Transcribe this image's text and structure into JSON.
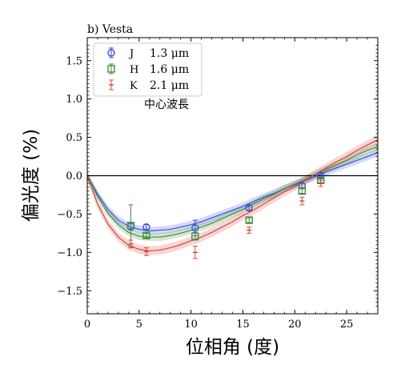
{
  "chart_data": {
    "type": "scatter",
    "panel_title": "b) Vesta",
    "xlabel": "位相角 (度)",
    "ylabel": "偏光度 (%)",
    "xlim": [
      0,
      28
    ],
    "ylim": [
      -1.8,
      1.8
    ],
    "xticks": [
      0,
      5,
      10,
      15,
      20,
      25
    ],
    "yticks": [
      -1.5,
      -1.0,
      -0.5,
      0.0,
      0.5,
      1.0,
      1.5
    ],
    "xtick_labels": [
      "0",
      "5",
      "10",
      "15",
      "20",
      "25"
    ],
    "ytick_labels": [
      "−1.5",
      "−1.0",
      "−0.5",
      "0.0",
      "0.5",
      "1.0",
      "1.5"
    ],
    "zero_line": true,
    "grid": false,
    "legend_position": "upper-left",
    "legend_note": "中心波長",
    "series": [
      {
        "key": "J",
        "name": "1.3 μm",
        "color": "#3a4fd6",
        "marker": "circle",
        "x": [
          4.2,
          5.7,
          10.4,
          15.6,
          20.7,
          22.5
        ],
        "y": [
          -0.66,
          -0.67,
          -0.68,
          -0.42,
          -0.13,
          0.0
        ],
        "yerr": [
          0.05,
          0.03,
          0.1,
          0.03,
          0.03,
          0.04
        ],
        "fit_x": [
          0,
          1,
          2,
          3,
          4,
          5,
          6,
          7,
          8,
          9,
          10,
          11,
          12,
          13,
          14,
          15,
          16,
          17,
          18,
          19,
          20,
          21,
          22,
          23,
          24,
          25,
          26,
          27,
          28
        ],
        "fit_y": [
          0.0,
          -0.24,
          -0.44,
          -0.58,
          -0.66,
          -0.7,
          -0.72,
          -0.71,
          -0.7,
          -0.67,
          -0.64,
          -0.6,
          -0.55,
          -0.5,
          -0.45,
          -0.4,
          -0.34,
          -0.28,
          -0.23,
          -0.17,
          -0.12,
          -0.06,
          -0.01,
          0.05,
          0.1,
          0.15,
          0.2,
          0.25,
          0.3
        ],
        "band": 0.05
      },
      {
        "key": "H",
        "name": "1.6 μm",
        "color": "#3f8f3a",
        "marker": "square",
        "x": [
          4.2,
          5.7,
          10.4,
          15.6,
          20.7,
          22.5
        ],
        "y": [
          -0.65,
          -0.78,
          -0.79,
          -0.58,
          -0.2,
          -0.06
        ],
        "yerr": [
          0.27,
          0.03,
          0.05,
          0.03,
          0.03,
          0.03
        ],
        "fit_x": [
          0,
          1,
          2,
          3,
          4,
          5,
          6,
          7,
          8,
          9,
          10,
          11,
          12,
          13,
          14,
          15,
          16,
          17,
          18,
          19,
          20,
          21,
          22,
          23,
          24,
          25,
          26,
          27,
          28
        ],
        "fit_y": [
          0.0,
          -0.27,
          -0.49,
          -0.64,
          -0.74,
          -0.79,
          -0.8,
          -0.8,
          -0.78,
          -0.75,
          -0.71,
          -0.67,
          -0.62,
          -0.56,
          -0.5,
          -0.44,
          -0.37,
          -0.3,
          -0.24,
          -0.17,
          -0.11,
          -0.05,
          0.02,
          0.08,
          0.14,
          0.2,
          0.27,
          0.33,
          0.38
        ],
        "band": 0.05
      },
      {
        "key": "K",
        "name": "2.1 μm",
        "color": "#d9443a",
        "marker": "none",
        "x": [
          4.2,
          5.7,
          10.4,
          15.6,
          20.7,
          22.5
        ],
        "y": [
          -0.89,
          -0.99,
          -1.0,
          -0.71,
          -0.33,
          -0.1
        ],
        "yerr": [
          0.05,
          0.05,
          0.08,
          0.04,
          0.05,
          0.04
        ],
        "fit_x": [
          0,
          1,
          2,
          3,
          4,
          5,
          6,
          7,
          8,
          9,
          10,
          11,
          12,
          13,
          14,
          15,
          16,
          17,
          18,
          19,
          20,
          21,
          22,
          23,
          24,
          25,
          26,
          27,
          28
        ],
        "fit_y": [
          0.0,
          -0.37,
          -0.63,
          -0.8,
          -0.91,
          -0.96,
          -0.98,
          -0.97,
          -0.94,
          -0.9,
          -0.85,
          -0.8,
          -0.74,
          -0.67,
          -0.6,
          -0.52,
          -0.45,
          -0.37,
          -0.29,
          -0.21,
          -0.14,
          -0.06,
          0.02,
          0.1,
          0.18,
          0.25,
          0.33,
          0.4,
          0.47
        ],
        "band": 0.06
      }
    ]
  }
}
